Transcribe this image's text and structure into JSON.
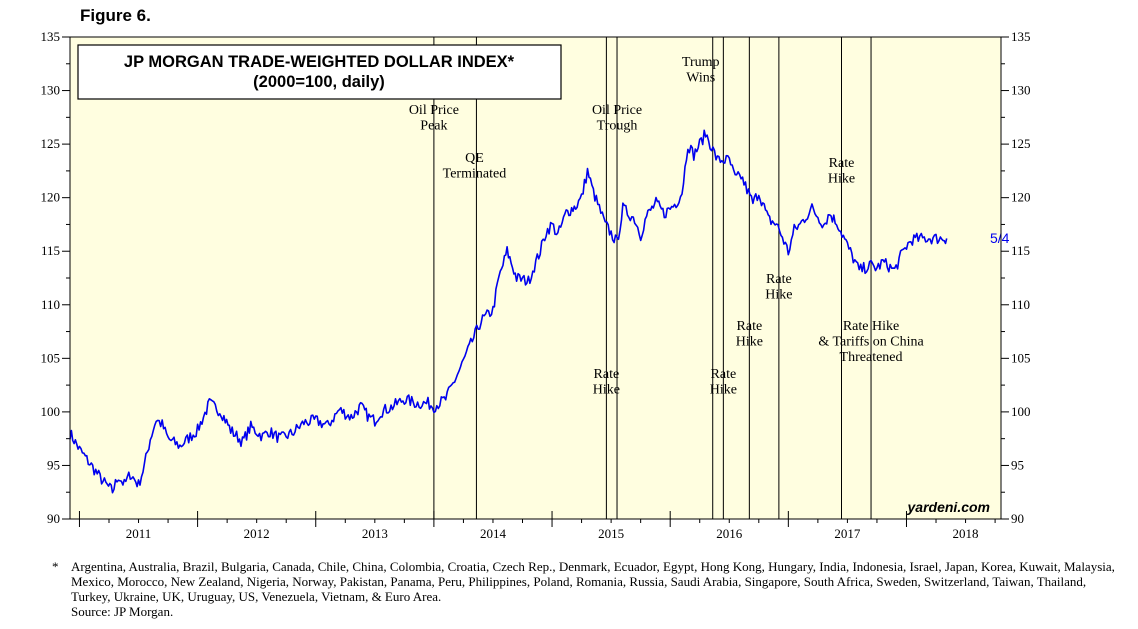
{
  "figure_label": "Figure 6.",
  "chart_data": {
    "type": "line",
    "title": "JP MORGAN TRADE-WEIGHTED DOLLAR INDEX*",
    "subtitle": "(2000=100, daily)",
    "ylim": [
      90,
      135
    ],
    "yticks": [
      90,
      95,
      100,
      105,
      110,
      115,
      120,
      125,
      130,
      135
    ],
    "xlim": [
      2010.92,
      2018.8
    ],
    "year_labels": [
      "2011",
      "2012",
      "2013",
      "2014",
      "2015",
      "2016",
      "2017",
      "2018"
    ],
    "grid": false,
    "series": [
      {
        "color": "#0000ee",
        "x": [
          2010.92,
          2011.0,
          2011.1,
          2011.2,
          2011.28,
          2011.33,
          2011.38,
          2011.43,
          2011.5,
          2011.55,
          2011.6,
          2011.65,
          2011.7,
          2011.75,
          2011.85,
          2011.95,
          2012.0,
          2012.1,
          2012.2,
          2012.28,
          2012.38,
          2012.45,
          2012.55,
          2012.6,
          2012.7,
          2012.8,
          2012.9,
          2013.0,
          2013.1,
          2013.2,
          2013.3,
          2013.38,
          2013.45,
          2013.5,
          2013.55,
          2013.65,
          2013.75,
          2013.85,
          2013.95,
          2014.0,
          2014.1,
          2014.2,
          2014.3,
          2014.4,
          2014.5,
          2014.55,
          2014.62,
          2014.7,
          2014.8,
          2014.9,
          2014.95,
          2015.0,
          2015.05,
          2015.12,
          2015.2,
          2015.25,
          2015.3,
          2015.35,
          2015.45,
          2015.55,
          2015.6,
          2015.7,
          2015.75,
          2015.8,
          2015.88,
          2015.95,
          2016.0,
          2016.05,
          2016.1,
          2016.15,
          2016.2,
          2016.3,
          2016.4,
          2016.5,
          2016.55,
          2016.6,
          2016.7,
          2016.75,
          2016.83,
          2016.9,
          2016.95,
          2017.0,
          2017.05,
          2017.1,
          2017.2,
          2017.3,
          2017.35,
          2017.42,
          2017.5,
          2017.6,
          2017.7,
          2017.75,
          2017.8,
          2017.85,
          2017.9,
          2017.95,
          2018.0,
          2018.05,
          2018.1,
          2018.15,
          2018.2,
          2018.25,
          2018.3,
          2018.34
        ],
        "values": [
          98,
          96.5,
          95,
          93.5,
          92.6,
          94,
          93.2,
          94.2,
          93.2,
          95,
          97.5,
          99.3,
          98.8,
          97.5,
          96.8,
          97.8,
          98.3,
          100.8,
          100,
          98.3,
          97.2,
          98.6,
          97.7,
          98.2,
          97.5,
          98,
          99,
          99.2,
          98.7,
          100.2,
          99.5,
          100.5,
          99.5,
          99.2,
          100,
          100.5,
          101.2,
          100.8,
          100.8,
          100.5,
          101.2,
          103.5,
          106,
          108.5,
          109.5,
          112.5,
          115,
          112.5,
          112.2,
          115,
          116.8,
          117.5,
          116.5,
          118.6,
          119.2,
          120,
          122.5,
          120.5,
          117.5,
          115.8,
          119,
          118,
          116.5,
          118.3,
          119.5,
          118.5,
          119,
          119.5,
          120.5,
          125,
          124,
          126,
          123.5,
          123.5,
          121.8,
          122,
          119.5,
          120.5,
          118,
          117.5,
          116.3,
          114.9,
          117,
          117.5,
          119,
          117.5,
          118.5,
          117.5,
          115.5,
          113.2,
          113.7,
          113.4,
          114,
          113.6,
          113.2,
          114.5,
          115.5,
          116.1,
          116.15,
          116.2,
          116.2,
          116.2,
          116.2,
          116.2
        ]
      }
    ],
    "end_label": "5/4",
    "events": [
      {
        "x": 2014.0,
        "label": [
          "Oil Price",
          "Peak"
        ]
      },
      {
        "x": 2014.36,
        "label": [
          "QE",
          "Terminated"
        ]
      },
      {
        "x": 2015.46,
        "label": [
          "Rate",
          "Hike"
        ]
      },
      {
        "x": 2015.55,
        "label": [
          "Oil Price",
          "Trough"
        ]
      },
      {
        "x": 2016.36,
        "label": [
          "Trump",
          "Wins"
        ]
      },
      {
        "x": 2016.45,
        "label": [
          "Rate",
          "Hike"
        ]
      },
      {
        "x": 2016.67,
        "label": [
          "Rate",
          "Hike"
        ]
      },
      {
        "x": 2016.92,
        "label": [
          "Rate",
          "Hike"
        ]
      },
      {
        "x": 2017.45,
        "label": [
          "Rate",
          "Hike"
        ]
      },
      {
        "x": 2017.7,
        "label": [
          "Rate Hike",
          "& Tariffs on China",
          "Threatened"
        ]
      }
    ],
    "watermark": "yardeni.com"
  },
  "footnote": {
    "marker": "*",
    "text": "Argentina, Australia, Brazil, Bulgaria, Canada, Chile, China, Colombia, Croatia, Czech Rep., Denmark, Ecuador, Egypt, Hong Kong, Hungary, India, Indonesia, Israel, Japan, Korea, Kuwait, Malaysia, Mexico, Morocco, New Zealand, Nigeria, Norway, Pakistan, Panama, Peru, Philippines, Poland, Romania, Russia, Saudi Arabia, Singapore, South Africa, Sweden, Switzerland, Taiwan, Thailand, Turkey, Ukraine, UK, Uruguay, US, Venezuela, Vietnam, & Euro Area.",
    "source": "Source: JP Morgan."
  },
  "colors": {
    "plot_bg": "#fffee0",
    "line": "#0000ee"
  }
}
